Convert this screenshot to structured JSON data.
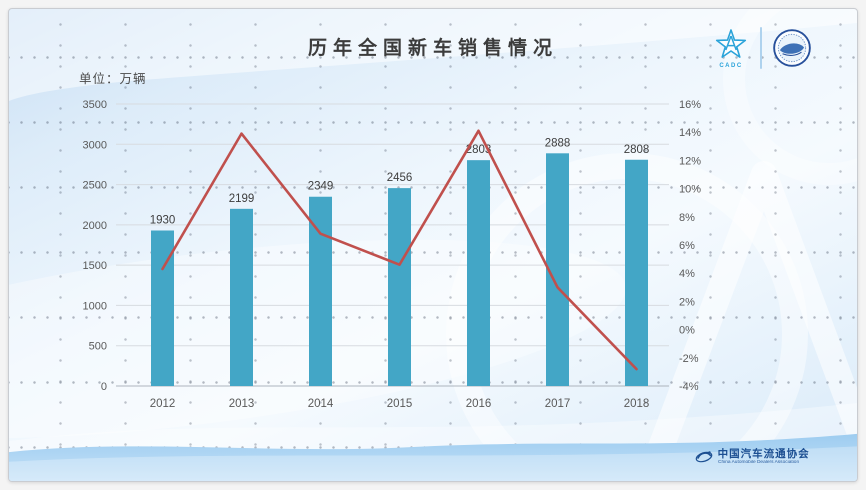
{
  "slide": {
    "title": "历年全国新车销售情况",
    "unit_label": "单位：万辆"
  },
  "header_logos": {
    "star_logo_text": "CADC"
  },
  "footer": {
    "org_name_cn": "中国汽车流通协会",
    "org_name_en": "China Automobile Dealers Association"
  },
  "colors": {
    "bar": "#43a6c6",
    "line": "#c0504d",
    "grid": "#d7dbe0",
    "axis_line": "#adb4bd",
    "axis_text": "#595959",
    "label_text": "#3d3d3d",
    "brand_blue": "#1c4f92",
    "logo_blue": "#2aa3d9"
  },
  "chart_data": {
    "type": "bar",
    "title": "历年全国新车销售情况",
    "unit": "万辆",
    "categories": [
      "2012",
      "2013",
      "2014",
      "2015",
      "2016",
      "2017",
      "2018"
    ],
    "series": [
      {
        "id": "new-car-sales-bar",
        "type": "bar",
        "axis": "left",
        "color": "#43a6c6",
        "values": [
          1930,
          2199,
          2349,
          2456,
          2803,
          2888,
          2808
        ],
        "labels": [
          "1930",
          "2199",
          "2349",
          "2456",
          "2803",
          "2888",
          "2808"
        ]
      },
      {
        "id": "growth-rate-line",
        "type": "line",
        "axis": "right",
        "color": "#c0504d",
        "values": [
          4.3,
          13.9,
          6.8,
          4.6,
          14.1,
          3.0,
          -2.8
        ]
      }
    ],
    "left_axis": {
      "min": 0,
      "max": 3500,
      "step": 500,
      "tick_labels": [
        "3500",
        "3000",
        "2500",
        "2000",
        "1500",
        "1000",
        "500",
        "0"
      ]
    },
    "right_axis": {
      "min": -4,
      "max": 16,
      "step": 2,
      "tick_labels": [
        "16%",
        "14%",
        "12%",
        "10%",
        "8%",
        "6%",
        "4%",
        "2%",
        "0%",
        "-2%",
        "-4%"
      ]
    },
    "grid": "horizontal gridlines on, light gray",
    "legend": "none"
  }
}
